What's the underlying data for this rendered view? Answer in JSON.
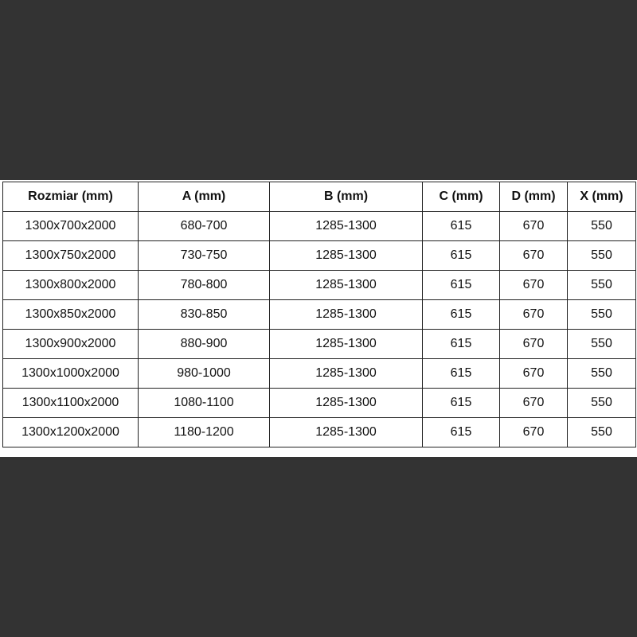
{
  "table": {
    "headers": [
      "Rozmiar (mm)",
      "A (mm)",
      "B (mm)",
      "C (mm)",
      "D (mm)",
      "X (mm)"
    ],
    "rows": [
      [
        "1300x700x2000",
        "680-700",
        "1285-1300",
        "615",
        "670",
        "550"
      ],
      [
        "1300x750x2000",
        "730-750",
        "1285-1300",
        "615",
        "670",
        "550"
      ],
      [
        "1300x800x2000",
        "780-800",
        "1285-1300",
        "615",
        "670",
        "550"
      ],
      [
        "1300x850x2000",
        "830-850",
        "1285-1300",
        "615",
        "670",
        "550"
      ],
      [
        "1300x900x2000",
        "880-900",
        "1285-1300",
        "615",
        "670",
        "550"
      ],
      [
        "1300x1000x2000",
        "980-1000",
        "1285-1300",
        "615",
        "670",
        "550"
      ],
      [
        "1300x1100x2000",
        "1080-1100",
        "1285-1300",
        "615",
        "670",
        "550"
      ],
      [
        "1300x1200x2000",
        "1180-1200",
        "1285-1300",
        "615",
        "670",
        "550"
      ]
    ]
  }
}
